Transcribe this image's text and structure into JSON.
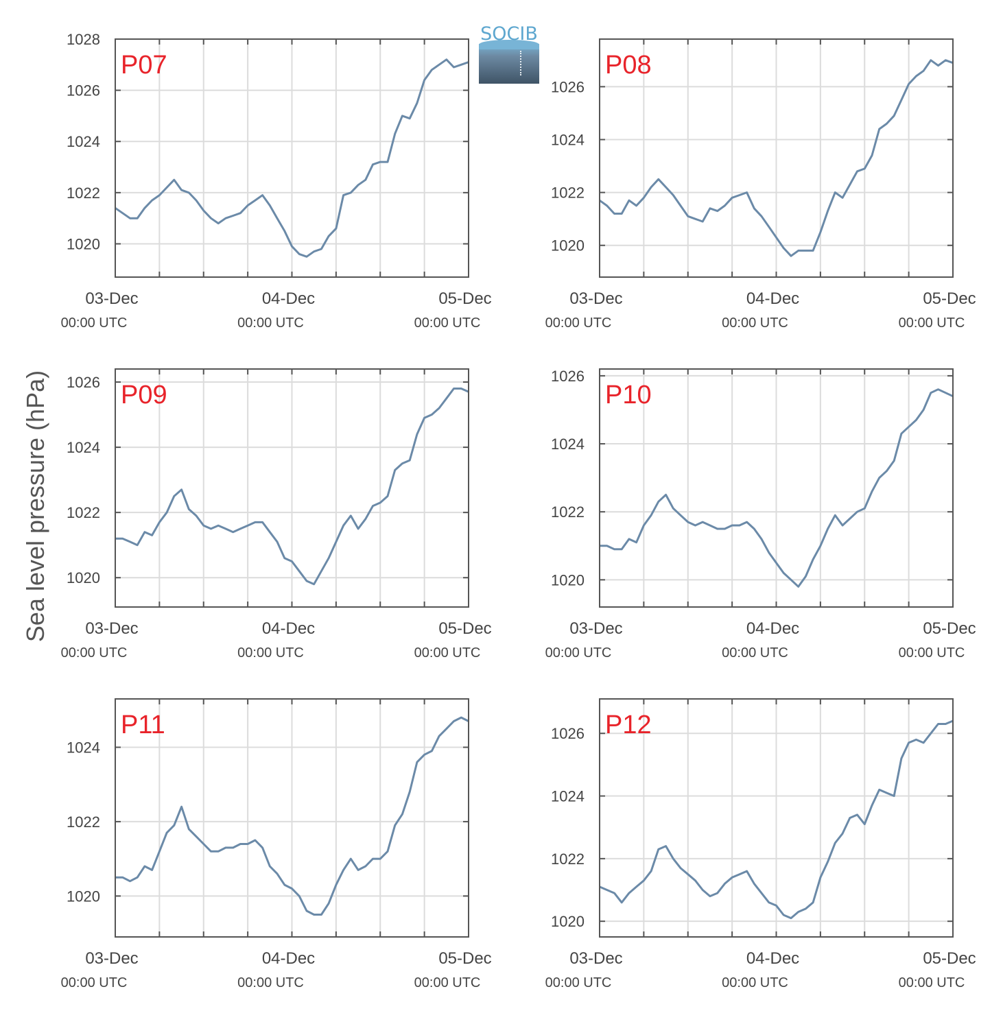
{
  "figure": {
    "ylabel": "Sea level pressure (hPa)",
    "logo_text": "SOCIB",
    "series_color": "#6b8aa8",
    "panel_label_color": "#e8232a",
    "grid_color": "#dcdcdc",
    "axis_color": "#555555"
  },
  "chart_data": [
    {
      "type": "line",
      "panel_label": "P07",
      "x_ticks": [
        {
          "main": "03-Dec",
          "sub": "00:00 UTC"
        },
        {
          "main": "04-Dec",
          "sub": "00:00 UTC"
        },
        {
          "main": "05-Dec",
          "sub": "00:00 UTC"
        }
      ],
      "xlim": [
        0,
        48
      ],
      "ylim": [
        1018.7,
        1028.0
      ],
      "y_ticks": [
        1020,
        1022,
        1024,
        1026,
        1028
      ],
      "grid": true,
      "x": [
        0,
        1,
        2,
        3,
        4,
        5,
        6,
        7,
        8,
        9,
        10,
        11,
        12,
        13,
        14,
        15,
        16,
        17,
        18,
        19,
        20,
        21,
        22,
        23,
        24,
        25,
        26,
        27,
        28,
        29,
        30,
        31,
        32,
        33,
        34,
        35,
        36,
        37,
        38,
        39,
        40,
        41,
        42,
        43,
        44,
        45,
        46,
        47,
        48
      ],
      "y": [
        1021.4,
        1021.2,
        1021.0,
        1021.0,
        1021.4,
        1021.7,
        1021.9,
        1022.2,
        1022.5,
        1022.1,
        1022.0,
        1021.7,
        1021.3,
        1021.0,
        1020.8,
        1021.0,
        1021.1,
        1021.2,
        1021.5,
        1021.7,
        1021.9,
        1021.5,
        1021.0,
        1020.5,
        1019.9,
        1019.6,
        1019.5,
        1019.7,
        1019.8,
        1020.3,
        1020.6,
        1021.9,
        1022.0,
        1022.3,
        1022.5,
        1023.1,
        1023.2,
        1023.2,
        1024.3,
        1025.0,
        1024.9,
        1025.5,
        1026.4,
        1026.8,
        1027.0,
        1027.2,
        1026.9,
        1027.0,
        1027.1
      ]
    },
    {
      "type": "line",
      "panel_label": "P08",
      "x_ticks": [
        {
          "main": "03-Dec",
          "sub": "00:00 UTC"
        },
        {
          "main": "04-Dec",
          "sub": "00:00 UTC"
        },
        {
          "main": "05-Dec",
          "sub": "00:00 UTC"
        }
      ],
      "xlim": [
        0,
        48
      ],
      "ylim": [
        1018.8,
        1027.8
      ],
      "y_ticks": [
        1020,
        1022,
        1024,
        1026
      ],
      "grid": true,
      "x": [
        0,
        1,
        2,
        3,
        4,
        5,
        6,
        7,
        8,
        9,
        10,
        11,
        12,
        13,
        14,
        15,
        16,
        17,
        18,
        19,
        20,
        21,
        22,
        23,
        24,
        25,
        26,
        27,
        28,
        29,
        30,
        31,
        32,
        33,
        34,
        35,
        36,
        37,
        38,
        39,
        40,
        41,
        42,
        43,
        44,
        45,
        46,
        47,
        48
      ],
      "y": [
        1021.7,
        1021.5,
        1021.2,
        1021.2,
        1021.7,
        1021.5,
        1021.8,
        1022.2,
        1022.5,
        1022.2,
        1021.9,
        1021.5,
        1021.1,
        1021.0,
        1020.9,
        1021.4,
        1021.3,
        1021.5,
        1021.8,
        1021.9,
        1022.0,
        1021.4,
        1021.1,
        1020.7,
        1020.3,
        1019.9,
        1019.6,
        1019.8,
        1019.8,
        1019.8,
        1020.5,
        1021.3,
        1022.0,
        1021.8,
        1022.3,
        1022.8,
        1022.9,
        1023.4,
        1024.4,
        1024.6,
        1024.9,
        1025.5,
        1026.1,
        1026.4,
        1026.6,
        1027.0,
        1026.8,
        1027.0,
        1026.9
      ]
    },
    {
      "type": "line",
      "panel_label": "P09",
      "x_ticks": [
        {
          "main": "03-Dec",
          "sub": "00:00 UTC"
        },
        {
          "main": "04-Dec",
          "sub": "00:00 UTC"
        },
        {
          "main": "05-Dec",
          "sub": "00:00 UTC"
        }
      ],
      "xlim": [
        0,
        48
      ],
      "ylim": [
        1019.1,
        1026.4
      ],
      "y_ticks": [
        1020,
        1022,
        1024,
        1026
      ],
      "grid": true,
      "x": [
        0,
        1,
        2,
        3,
        4,
        5,
        6,
        7,
        8,
        9,
        10,
        11,
        12,
        13,
        14,
        15,
        16,
        17,
        18,
        19,
        20,
        21,
        22,
        23,
        24,
        25,
        26,
        27,
        28,
        29,
        30,
        31,
        32,
        33,
        34,
        35,
        36,
        37,
        38,
        39,
        40,
        41,
        42,
        43,
        44,
        45,
        46,
        47,
        48
      ],
      "y": [
        1021.2,
        1021.2,
        1021.1,
        1021.0,
        1021.4,
        1021.3,
        1021.7,
        1022.0,
        1022.5,
        1022.7,
        1022.1,
        1021.9,
        1021.6,
        1021.5,
        1021.6,
        1021.5,
        1021.4,
        1021.5,
        1021.6,
        1021.7,
        1021.7,
        1021.4,
        1021.1,
        1020.6,
        1020.5,
        1020.2,
        1019.9,
        1019.8,
        1020.2,
        1020.6,
        1021.1,
        1021.6,
        1021.9,
        1021.5,
        1021.8,
        1022.2,
        1022.3,
        1022.5,
        1023.3,
        1023.5,
        1023.6,
        1024.4,
        1024.9,
        1025.0,
        1025.2,
        1025.5,
        1025.8,
        1025.8,
        1025.7
      ]
    },
    {
      "type": "line",
      "panel_label": "P10",
      "x_ticks": [
        {
          "main": "03-Dec",
          "sub": "00:00 UTC"
        },
        {
          "main": "04-Dec",
          "sub": "00:00 UTC"
        },
        {
          "main": "05-Dec",
          "sub": "00:00 UTC"
        }
      ],
      "xlim": [
        0,
        48
      ],
      "ylim": [
        1019.2,
        1026.2
      ],
      "y_ticks": [
        1020,
        1022,
        1024,
        1026
      ],
      "grid": true,
      "x": [
        0,
        1,
        2,
        3,
        4,
        5,
        6,
        7,
        8,
        9,
        10,
        11,
        12,
        13,
        14,
        15,
        16,
        17,
        18,
        19,
        20,
        21,
        22,
        23,
        24,
        25,
        26,
        27,
        28,
        29,
        30,
        31,
        32,
        33,
        34,
        35,
        36,
        37,
        38,
        39,
        40,
        41,
        42,
        43,
        44,
        45,
        46,
        47,
        48
      ],
      "y": [
        1021.0,
        1021.0,
        1020.9,
        1020.9,
        1021.2,
        1021.1,
        1021.6,
        1021.9,
        1022.3,
        1022.5,
        1022.1,
        1021.9,
        1021.7,
        1021.6,
        1021.7,
        1021.6,
        1021.5,
        1021.5,
        1021.6,
        1021.6,
        1021.7,
        1021.5,
        1021.2,
        1020.8,
        1020.5,
        1020.2,
        1020.0,
        1019.8,
        1020.1,
        1020.6,
        1021.0,
        1021.5,
        1021.9,
        1021.6,
        1021.8,
        1022.0,
        1022.1,
        1022.6,
        1023.0,
        1023.2,
        1023.5,
        1024.3,
        1024.5,
        1024.7,
        1025.0,
        1025.5,
        1025.6,
        1025.5,
        1025.4
      ]
    },
    {
      "type": "line",
      "panel_label": "P11",
      "x_ticks": [
        {
          "main": "03-Dec",
          "sub": "00:00 UTC"
        },
        {
          "main": "04-Dec",
          "sub": "00:00 UTC"
        },
        {
          "main": "05-Dec",
          "sub": "00:00 UTC"
        }
      ],
      "xlim": [
        0,
        48
      ],
      "ylim": [
        1018.9,
        1025.3
      ],
      "y_ticks": [
        1020,
        1022,
        1024
      ],
      "grid": true,
      "x": [
        0,
        1,
        2,
        3,
        4,
        5,
        6,
        7,
        8,
        9,
        10,
        11,
        12,
        13,
        14,
        15,
        16,
        17,
        18,
        19,
        20,
        21,
        22,
        23,
        24,
        25,
        26,
        27,
        28,
        29,
        30,
        31,
        32,
        33,
        34,
        35,
        36,
        37,
        38,
        39,
        40,
        41,
        42,
        43,
        44,
        45,
        46,
        47,
        48
      ],
      "y": [
        1020.5,
        1020.5,
        1020.4,
        1020.5,
        1020.8,
        1020.7,
        1021.2,
        1021.7,
        1021.9,
        1022.4,
        1021.8,
        1021.6,
        1021.4,
        1021.2,
        1021.2,
        1021.3,
        1021.3,
        1021.4,
        1021.4,
        1021.5,
        1021.3,
        1020.8,
        1020.6,
        1020.3,
        1020.2,
        1020.0,
        1019.6,
        1019.5,
        1019.5,
        1019.8,
        1020.3,
        1020.7,
        1021.0,
        1020.7,
        1020.8,
        1021.0,
        1021.0,
        1021.2,
        1021.9,
        1022.2,
        1022.8,
        1023.6,
        1023.8,
        1023.9,
        1024.3,
        1024.5,
        1024.7,
        1024.8,
        1024.7
      ]
    },
    {
      "type": "line",
      "panel_label": "P12",
      "x_ticks": [
        {
          "main": "03-Dec",
          "sub": "00:00 UTC"
        },
        {
          "main": "04-Dec",
          "sub": "00:00 UTC"
        },
        {
          "main": "05-Dec",
          "sub": "00:00 UTC"
        }
      ],
      "xlim": [
        0,
        48
      ],
      "ylim": [
        1019.5,
        1027.1
      ],
      "y_ticks": [
        1020,
        1022,
        1024,
        1026
      ],
      "grid": true,
      "x": [
        0,
        1,
        2,
        3,
        4,
        5,
        6,
        7,
        8,
        9,
        10,
        11,
        12,
        13,
        14,
        15,
        16,
        17,
        18,
        19,
        20,
        21,
        22,
        23,
        24,
        25,
        26,
        27,
        28,
        29,
        30,
        31,
        32,
        33,
        34,
        35,
        36,
        37,
        38,
        39,
        40,
        41,
        42,
        43,
        44,
        45,
        46,
        47,
        48
      ],
      "y": [
        1021.1,
        1021.0,
        1020.9,
        1020.6,
        1020.9,
        1021.1,
        1021.3,
        1021.6,
        1022.3,
        1022.4,
        1022.0,
        1021.7,
        1021.5,
        1021.3,
        1021.0,
        1020.8,
        1020.9,
        1021.2,
        1021.4,
        1021.5,
        1021.6,
        1021.2,
        1020.9,
        1020.6,
        1020.5,
        1020.2,
        1020.1,
        1020.3,
        1020.4,
        1020.6,
        1021.4,
        1021.9,
        1022.5,
        1022.8,
        1023.3,
        1023.4,
        1023.1,
        1023.7,
        1024.2,
        1024.1,
        1024.0,
        1025.2,
        1025.7,
        1025.8,
        1025.7,
        1026.0,
        1026.3,
        1026.3,
        1026.4
      ]
    }
  ]
}
